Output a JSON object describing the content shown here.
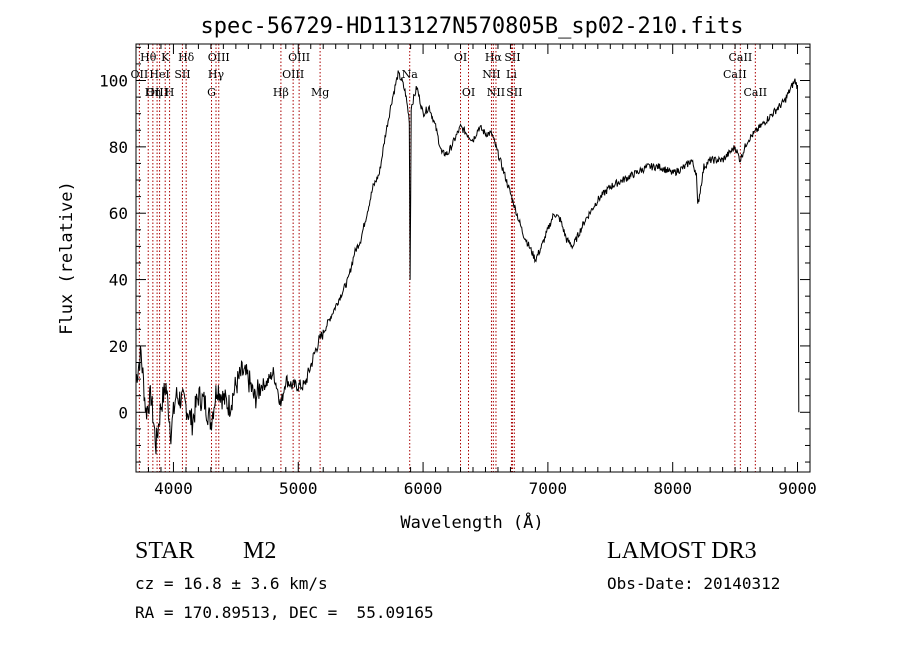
{
  "chart_data": {
    "type": "line",
    "title": "spec-56729-HD113127N570805B_sp02-210.fits",
    "xlabel": "Wavelength (Å)",
    "ylabel": "Flux (relative)",
    "xlim": [
      3700,
      9100
    ],
    "ylim": [
      -18,
      111
    ],
    "xticks": [
      4000,
      5000,
      6000,
      7000,
      8000,
      9000
    ],
    "yticks": [
      0,
      20,
      40,
      60,
      80,
      100
    ],
    "grid": false,
    "series": [
      {
        "x": [
          3700,
          3740,
          3780,
          3820,
          3860,
          3900,
          3940,
          3980,
          4020,
          4060,
          4100,
          4150,
          4200,
          4250,
          4300,
          4350,
          4400,
          4450,
          4500,
          4550,
          4600,
          4650,
          4700,
          4750,
          4800,
          4840,
          4860,
          4900,
          4950,
          5000,
          5050,
          5100,
          5150,
          5200,
          5250,
          5300,
          5350,
          5400,
          5450,
          5500,
          5550,
          5600,
          5650,
          5700,
          5750,
          5800,
          5830,
          5860,
          5890,
          5896,
          5905,
          5920,
          5950,
          6000,
          6050,
          6100,
          6150,
          6200,
          6250,
          6300,
          6350,
          6400,
          6450,
          6500,
          6550,
          6600,
          6650,
          6700,
          6750,
          6800,
          6850,
          6900,
          6950,
          7000,
          7050,
          7100,
          7150,
          7200,
          7250,
          7300,
          7400,
          7500,
          7600,
          7700,
          7800,
          7900,
          8000,
          8100,
          8150,
          8190,
          8200,
          8250,
          8300,
          8400,
          8500,
          8540,
          8600,
          8650,
          8700,
          8750,
          8800,
          8850,
          8900,
          8950,
          8980,
          9000,
          9010
        ],
        "values": [
          10,
          18,
          0,
          5,
          -10,
          2,
          8,
          -6,
          5,
          4,
          2,
          -3,
          5,
          3,
          -3,
          8,
          4,
          2,
          8,
          12,
          10,
          4,
          8,
          9,
          12,
          6,
          2,
          10,
          8,
          8,
          8,
          14,
          20,
          24,
          28,
          32,
          36,
          40,
          48,
          52,
          60,
          68,
          72,
          84,
          94,
          102,
          100,
          96,
          88,
          40,
          92,
          94,
          98,
          90,
          92,
          86,
          78,
          78,
          82,
          86,
          84,
          82,
          86,
          84,
          84,
          78,
          72,
          66,
          60,
          54,
          50,
          46,
          50,
          55,
          60,
          58,
          52,
          50,
          54,
          58,
          64,
          68,
          70,
          72,
          74,
          74,
          72,
          74,
          76,
          72,
          62,
          74,
          76,
          76,
          80,
          76,
          82,
          84,
          86,
          88,
          90,
          92,
          94,
          98,
          100,
          98,
          0
        ]
      }
    ],
    "lines": [
      {
        "label": "Hθ",
        "x": 3798,
        "row": 0
      },
      {
        "label": "OII",
        "x": 3727,
        "row": 1
      },
      {
        "label": "OIII",
        "x": 3869,
        "row": 2
      },
      {
        "label": "K",
        "x": 3934,
        "row": 0
      },
      {
        "label": "HeI",
        "x": 3889,
        "row": 1
      },
      {
        "label": "Hη",
        "x": 3835,
        "row": 2
      },
      {
        "label": "H",
        "x": 3969,
        "row": 2
      },
      {
        "label": "SII",
        "x": 4072,
        "row": 1
      },
      {
        "label": "Hδ",
        "x": 4102,
        "row": 0
      },
      {
        "label": "OIII",
        "x": 4363,
        "row": 0
      },
      {
        "label": "Hγ",
        "x": 4341,
        "row": 1
      },
      {
        "label": "G",
        "x": 4305,
        "row": 2
      },
      {
        "label": "Hβ",
        "x": 4861,
        "row": 2
      },
      {
        "label": "OIII",
        "x": 5007,
        "row": 0
      },
      {
        "label": "OIII",
        "x": 4959,
        "row": 1
      },
      {
        "label": "Mg",
        "x": 5175,
        "row": 2
      },
      {
        "label": "Na",
        "x": 5893,
        "row": 1
      },
      {
        "label": "OI",
        "x": 6300,
        "row": 0
      },
      {
        "label": "OI",
        "x": 6364,
        "row": 2
      },
      {
        "label": "Hα",
        "x": 6563,
        "row": 0
      },
      {
        "label": "SII",
        "x": 6716,
        "row": 0
      },
      {
        "label": "NII",
        "x": 6548,
        "row": 1
      },
      {
        "label": "Li",
        "x": 6708,
        "row": 1
      },
      {
        "label": "NII",
        "x": 6584,
        "row": 2
      },
      {
        "label": "SII",
        "x": 6731,
        "row": 2
      },
      {
        "label": "CaII",
        "x": 8542,
        "row": 0
      },
      {
        "label": "CaII",
        "x": 8498,
        "row": 1
      },
      {
        "label": "CaII",
        "x": 8662,
        "row": 2
      }
    ]
  },
  "info": {
    "class": "STAR",
    "subclass": "M2",
    "survey": "LAMOST DR3",
    "cz": "cz = 16.8 ± 3.6 km/s",
    "obs_date": "Obs-Date: 20140312",
    "radec": "RA = 170.89513, DEC =  55.09165"
  },
  "colors": {
    "spectrum": "#000000",
    "line_markers": "#aa0000"
  }
}
